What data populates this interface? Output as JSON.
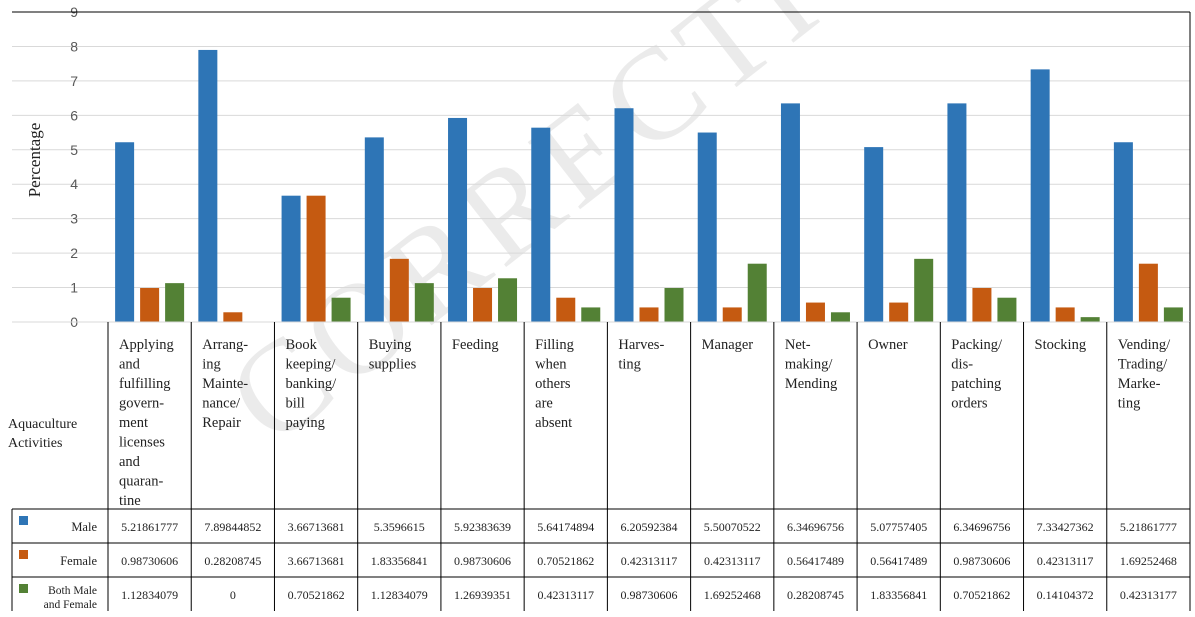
{
  "chart_data": {
    "type": "bar",
    "ylabel": "Percentage",
    "table_row_header": "Aquaculture Activities",
    "ylim": [
      0,
      9
    ],
    "yticks": [
      "0",
      "1",
      "2",
      "3",
      "4",
      "5",
      "6",
      "7",
      "8",
      "9"
    ],
    "grid": true,
    "legend_placement": "table-left",
    "categories": [
      "Applying and fulfilling govern- ment licenses and quaran- tine",
      "Arrang- ing Mainte- nance/ Repair",
      "Book keeping/ banking/ bill paying",
      "Buying supplies",
      "Feeding",
      "Filling when others are absent",
      "Harves- ting",
      "Manager",
      "Net- making/ Mending",
      "Owner",
      "Packing/ dis- patching orders",
      "Stocking",
      "Vending/ Trading/ Marke- ting"
    ],
    "category_lines": [
      [
        "Applying",
        "and",
        "fulfilling",
        "govern-",
        "ment",
        "licenses",
        "and",
        "quaran-",
        "tine"
      ],
      [
        "Arrang-",
        "ing",
        "Mainte-",
        "nance/",
        "Repair"
      ],
      [
        "Book",
        "keeping/",
        "banking/",
        "bill",
        "paying"
      ],
      [
        "Buying",
        "supplies"
      ],
      [
        "Feeding"
      ],
      [
        "Filling",
        "when",
        "others",
        "are",
        "absent"
      ],
      [
        "Harves-",
        "ting"
      ],
      [
        "Manager"
      ],
      [
        "Net-",
        "making/",
        "Mending"
      ],
      [
        "Owner"
      ],
      [
        "Packing/",
        "dis-",
        "patching",
        "orders"
      ],
      [
        "Stocking"
      ],
      [
        "Vending/",
        "Trading/",
        "Marke-",
        "ting"
      ]
    ],
    "series": [
      {
        "name": "Male",
        "color": "#2e75b6",
        "values": [
          5.21861777,
          7.89844852,
          3.66713681,
          5.3596615,
          5.92383639,
          5.64174894,
          6.20592384,
          5.50070522,
          6.34696756,
          5.07757405,
          6.34696756,
          7.33427362,
          5.21861777
        ],
        "labels": [
          "5.21861777",
          "7.89844852",
          "3.66713681",
          "5.3596615",
          "5.92383639",
          "5.64174894",
          "6.20592384",
          "5.50070522",
          "6.34696756",
          "5.07757405",
          "6.34696756",
          "7.33427362",
          "5.21861777"
        ]
      },
      {
        "name": "Female",
        "color": "#c55a11",
        "values": [
          0.98730606,
          0.28208745,
          3.66713681,
          1.83356841,
          0.98730606,
          0.70521862,
          0.42313117,
          0.42313117,
          0.56417489,
          0.56417489,
          0.98730606,
          0.42313117,
          1.69252468
        ],
        "labels": [
          "0.98730606",
          "0.28208745",
          "3.66713681",
          "1.83356841",
          "0.98730606",
          "0.70521862",
          "0.42313117",
          "0.42313117",
          "0.56417489",
          "0.56417489",
          "0.98730606",
          "0.42313117",
          "1.69252468"
        ]
      },
      {
        "name": "Both Male and Female",
        "name_lines": [
          "Both Male",
          "and Female"
        ],
        "color": "#538135",
        "values": [
          1.12834079,
          0,
          0.70521862,
          1.12834079,
          1.26939351,
          0.42313117,
          0.98730606,
          1.69252468,
          0.28208745,
          1.83356841,
          0.70521862,
          0.14104372,
          0.42313177
        ],
        "labels": [
          "1.12834079",
          "0",
          "0.70521862",
          "1.12834079",
          "1.26939351",
          "0.42313117",
          "0.98730606",
          "1.69252468",
          "0.28208745",
          "1.83356841",
          "0.70521862",
          "0.14104372",
          "0.42313177"
        ]
      }
    ]
  }
}
